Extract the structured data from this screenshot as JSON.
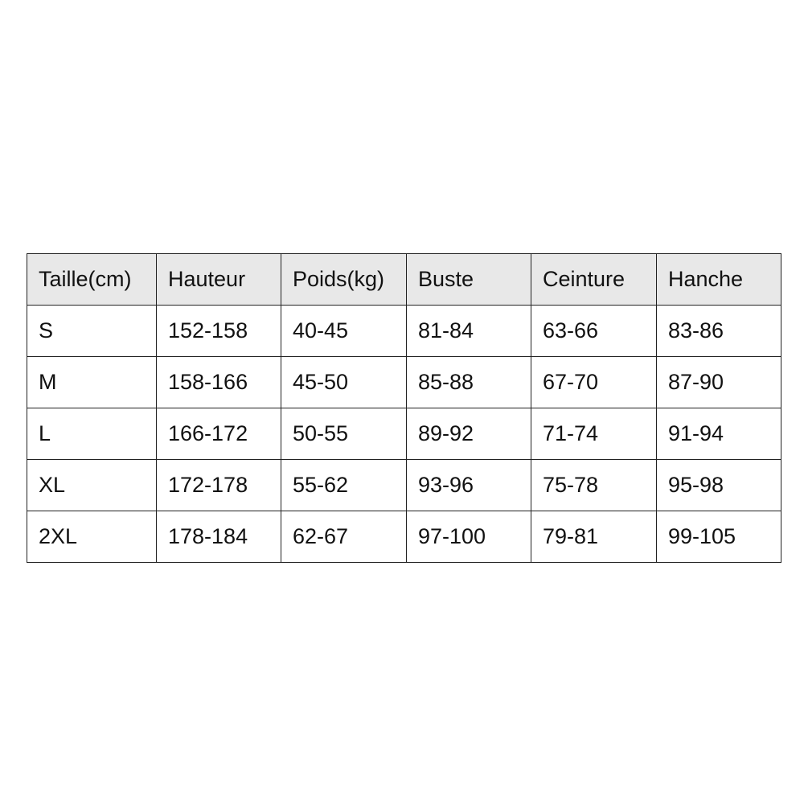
{
  "size_table": {
    "headers": [
      "Taille(cm)",
      "Hauteur",
      "Poids(kg)",
      "Buste",
      "Ceinture",
      "Hanche"
    ],
    "rows": [
      [
        "S",
        "152-158",
        "40-45",
        "81-84",
        "63-66",
        "83-86"
      ],
      [
        "M",
        "158-166",
        "45-50",
        "85-88",
        "67-70",
        "87-90"
      ],
      [
        "L",
        "166-172",
        "50-55",
        "89-92",
        "71-74",
        "91-94"
      ],
      [
        "XL",
        "172-178",
        "55-62",
        "93-96",
        "75-78",
        "95-98"
      ],
      [
        "2XL",
        "178-184",
        "62-67",
        "97-100",
        "79-81",
        "99-105"
      ]
    ],
    "header_bg": "#e8e8e8"
  }
}
